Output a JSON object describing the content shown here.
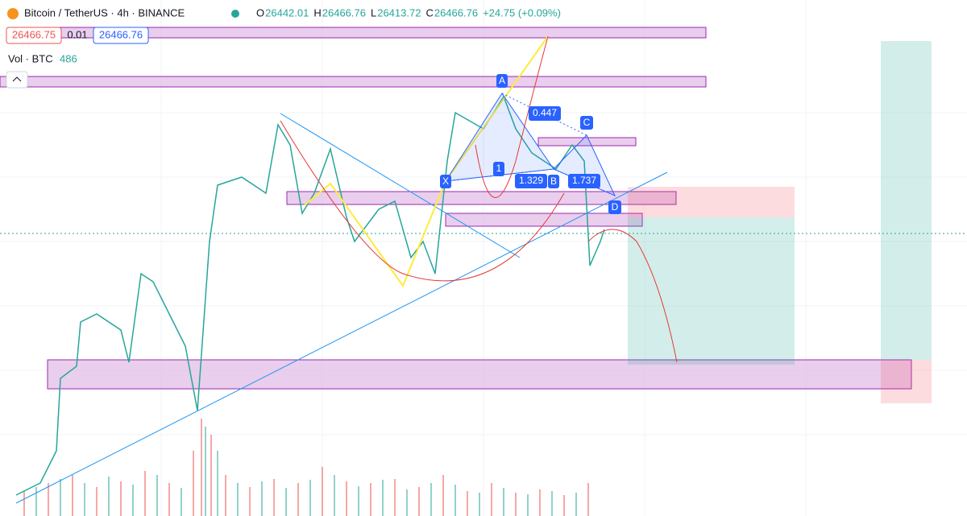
{
  "header": {
    "symbol": "Bitcoin / TetherUS · 4h · BINANCE",
    "ohlc": [
      {
        "label": "O",
        "value": "26442.01"
      },
      {
        "label": "H",
        "value": "26466.76"
      },
      {
        "label": "L",
        "value": "26413.72"
      },
      {
        "label": "C",
        "value": "26466.76"
      }
    ],
    "change": "+24.75 (+0.09%)"
  },
  "order": {
    "sell": "26466.75",
    "spread": "0.01",
    "buy": "26466.76"
  },
  "volume": {
    "label": "Vol · BTC",
    "value": "486"
  },
  "pattern": {
    "points": [
      "X",
      "A",
      "B",
      "C",
      "D"
    ],
    "ratios": [
      "0.447",
      "1.329",
      "1.737",
      "1"
    ]
  }
}
